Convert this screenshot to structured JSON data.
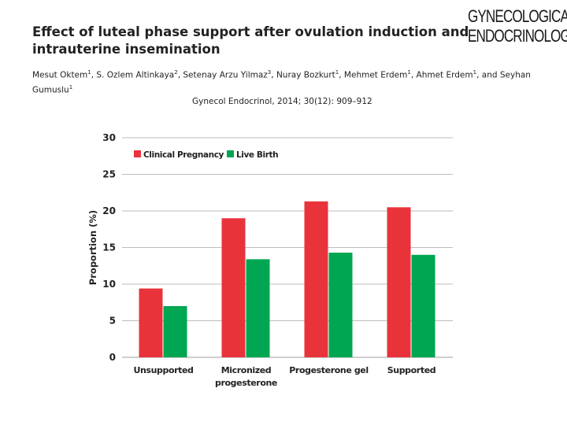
{
  "header": {
    "title_line1": "Effect of luteal phase support after ovulation induction and",
    "title_line2": "intrauterine insemination",
    "logo_line1": "GYNECOLOGICAL",
    "logo_line2": "ENDOCRINOLOGY",
    "authors": [
      {
        "name": "Mesut Oktem",
        "sup": "1",
        "sep": ", "
      },
      {
        "name": "S. Ozlem Altinkaya",
        "sup": "2",
        "sep": ", "
      },
      {
        "name": "Setenay Arzu Yilmaz",
        "sup": "3",
        "sep": ", "
      },
      {
        "name": "Nuray Bozkurt",
        "sup": "1",
        "sep": ", "
      },
      {
        "name": "Mehmet Erdem",
        "sup": "1",
        "sep": ", "
      },
      {
        "name": "Ahmet Erdem",
        "sup": "1",
        "sep": ", and "
      },
      {
        "name": "Seyhan Gumuslu",
        "sup": "1",
        "sep": ""
      }
    ],
    "journal": "Gynecol Endocrinol",
    "citation_rest": ", 2014; 30(12): 909–912"
  },
  "chart_data": {
    "type": "bar",
    "title": "",
    "xlabel": "",
    "ylabel": "Proportion (%)",
    "ylim": [
      0,
      30
    ],
    "yticks": [
      "0",
      "5",
      "10",
      "15",
      "20",
      "25",
      "30"
    ],
    "grid": true,
    "legend_position": "top-left",
    "categories": [
      [
        "Unsupported"
      ],
      [
        "Micronized",
        "progesterone"
      ],
      [
        "Progesterone gel"
      ],
      [
        "Supported"
      ]
    ],
    "series": [
      {
        "name": "Clinical Pregnancy",
        "color": "#e8333b",
        "values": [
          9.4,
          19.0,
          21.3,
          20.5
        ]
      },
      {
        "name": "Live Birth",
        "color": "#00a651",
        "values": [
          7.0,
          13.4,
          14.3,
          14.0
        ]
      }
    ]
  }
}
